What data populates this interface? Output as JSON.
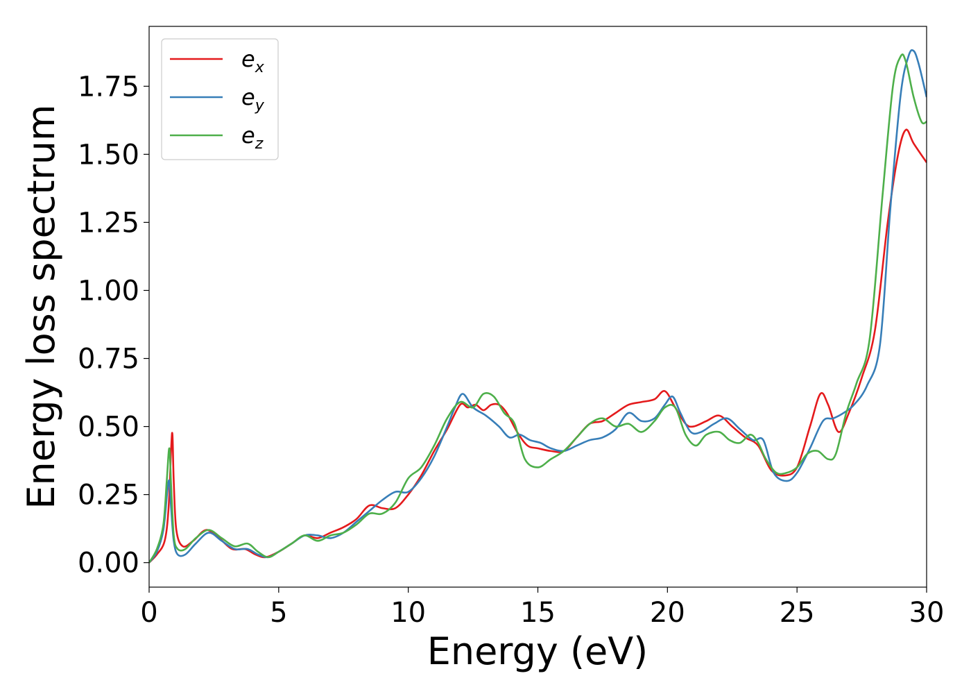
{
  "chart_data": {
    "type": "line",
    "title": "",
    "xlabel": "Energy (eV)",
    "ylabel": "Energy loss spectrum",
    "xlim": [
      0,
      30
    ],
    "ylim": [
      -0.09,
      1.97
    ],
    "xticks": [
      0,
      5,
      10,
      15,
      20,
      25,
      30
    ],
    "xtick_labels": [
      "0",
      "5",
      "10",
      "15",
      "20",
      "25",
      "30"
    ],
    "yticks": [
      0.0,
      0.25,
      0.5,
      0.75,
      1.0,
      1.25,
      1.5,
      1.75
    ],
    "ytick_labels": [
      "0.00",
      "0.25",
      "0.50",
      "0.75",
      "1.00",
      "1.25",
      "1.50",
      "1.75"
    ],
    "grid": false,
    "legend_position": "top-left",
    "series": [
      {
        "name": "e",
        "subscript": "x",
        "color": "#e41a1c",
        "x": [
          0,
          0.3,
          0.6,
          0.75,
          0.85,
          0.9,
          0.95,
          1.05,
          1.3,
          1.7,
          2.2,
          2.7,
          3.2,
          3.7,
          4.1,
          4.5,
          5.0,
          5.5,
          6.0,
          6.5,
          7.0,
          7.5,
          8.0,
          8.5,
          9.0,
          9.5,
          10.0,
          10.5,
          11.0,
          11.5,
          12.0,
          12.3,
          12.6,
          12.9,
          13.2,
          13.5,
          13.8,
          14.2,
          14.6,
          15.0,
          15.5,
          16.0,
          16.5,
          17.0,
          17.5,
          18.0,
          18.5,
          19.0,
          19.5,
          19.9,
          20.3,
          20.7,
          21.0,
          21.5,
          22.0,
          22.5,
          23.0,
          23.5,
          24.0,
          24.5,
          25.0,
          25.5,
          25.9,
          26.2,
          26.6,
          27.0,
          27.5,
          28.0,
          28.5,
          28.9,
          29.2,
          29.5,
          30.0
        ],
        "values": [
          0.0,
          0.03,
          0.08,
          0.2,
          0.42,
          0.47,
          0.3,
          0.12,
          0.06,
          0.08,
          0.12,
          0.09,
          0.05,
          0.05,
          0.03,
          0.02,
          0.04,
          0.07,
          0.1,
          0.09,
          0.11,
          0.13,
          0.16,
          0.21,
          0.2,
          0.2,
          0.25,
          0.32,
          0.41,
          0.49,
          0.58,
          0.57,
          0.58,
          0.56,
          0.58,
          0.58,
          0.55,
          0.48,
          0.43,
          0.42,
          0.41,
          0.41,
          0.46,
          0.51,
          0.52,
          0.55,
          0.58,
          0.59,
          0.6,
          0.63,
          0.57,
          0.51,
          0.5,
          0.52,
          0.54,
          0.5,
          0.46,
          0.43,
          0.34,
          0.32,
          0.35,
          0.5,
          0.62,
          0.58,
          0.48,
          0.55,
          0.68,
          0.85,
          1.25,
          1.5,
          1.59,
          1.54,
          1.47
        ]
      },
      {
        "name": "e",
        "subscript": "y",
        "color": "#377eb8",
        "x": [
          0,
          0.3,
          0.55,
          0.7,
          0.78,
          0.85,
          0.95,
          1.1,
          1.4,
          1.8,
          2.3,
          2.8,
          3.3,
          3.8,
          4.2,
          4.6,
          5.0,
          5.5,
          6.0,
          6.5,
          7.0,
          7.5,
          8.0,
          8.5,
          9.0,
          9.5,
          10.0,
          10.5,
          11.0,
          11.5,
          11.8,
          12.1,
          12.5,
          13.0,
          13.5,
          13.9,
          14.3,
          14.7,
          15.1,
          15.5,
          16.0,
          16.5,
          17.0,
          17.5,
          18.0,
          18.5,
          19.0,
          19.5,
          19.9,
          20.2,
          20.5,
          20.9,
          21.3,
          21.8,
          22.3,
          22.8,
          23.3,
          23.7,
          24.1,
          24.6,
          25.0,
          25.5,
          26.0,
          26.4,
          26.8,
          27.2,
          27.7,
          28.2,
          28.6,
          29.0,
          29.3,
          29.5,
          29.7,
          30.0
        ],
        "values": [
          0.0,
          0.04,
          0.12,
          0.26,
          0.3,
          0.2,
          0.08,
          0.03,
          0.03,
          0.07,
          0.11,
          0.08,
          0.05,
          0.05,
          0.03,
          0.02,
          0.04,
          0.07,
          0.1,
          0.1,
          0.09,
          0.11,
          0.15,
          0.19,
          0.23,
          0.26,
          0.26,
          0.31,
          0.39,
          0.5,
          0.57,
          0.62,
          0.57,
          0.54,
          0.5,
          0.46,
          0.47,
          0.45,
          0.44,
          0.42,
          0.41,
          0.43,
          0.45,
          0.46,
          0.49,
          0.55,
          0.52,
          0.53,
          0.58,
          0.61,
          0.55,
          0.48,
          0.48,
          0.51,
          0.53,
          0.49,
          0.45,
          0.45,
          0.33,
          0.3,
          0.33,
          0.42,
          0.52,
          0.53,
          0.55,
          0.58,
          0.65,
          0.8,
          1.3,
          1.72,
          1.86,
          1.88,
          1.83,
          1.71
        ]
      },
      {
        "name": "e",
        "subscript": "z",
        "color": "#4daf4a",
        "x": [
          0,
          0.3,
          0.55,
          0.68,
          0.78,
          0.85,
          0.95,
          1.1,
          1.4,
          1.8,
          2.3,
          2.8,
          3.3,
          3.8,
          4.2,
          4.6,
          5.0,
          5.5,
          6.0,
          6.5,
          7.0,
          7.5,
          8.0,
          8.5,
          9.0,
          9.5,
          10.0,
          10.5,
          11.0,
          11.5,
          12.0,
          12.5,
          12.9,
          13.3,
          13.7,
          14.1,
          14.5,
          15.0,
          15.5,
          16.0,
          16.5,
          17.0,
          17.5,
          18.0,
          18.5,
          19.0,
          19.5,
          19.9,
          20.3,
          20.7,
          21.1,
          21.5,
          22.0,
          22.4,
          22.8,
          23.2,
          23.5,
          23.8,
          24.2,
          24.6,
          25.0,
          25.4,
          25.8,
          26.2,
          26.5,
          26.9,
          27.3,
          27.8,
          28.3,
          28.7,
          29.0,
          29.2,
          29.5,
          29.8,
          30.0
        ],
        "values": [
          0.0,
          0.05,
          0.14,
          0.3,
          0.42,
          0.28,
          0.1,
          0.05,
          0.05,
          0.09,
          0.12,
          0.09,
          0.06,
          0.07,
          0.04,
          0.02,
          0.04,
          0.07,
          0.1,
          0.08,
          0.1,
          0.11,
          0.14,
          0.18,
          0.18,
          0.22,
          0.31,
          0.35,
          0.43,
          0.53,
          0.59,
          0.57,
          0.62,
          0.61,
          0.55,
          0.51,
          0.38,
          0.35,
          0.38,
          0.41,
          0.46,
          0.51,
          0.53,
          0.5,
          0.51,
          0.48,
          0.52,
          0.57,
          0.57,
          0.47,
          0.43,
          0.47,
          0.48,
          0.45,
          0.44,
          0.47,
          0.44,
          0.38,
          0.33,
          0.33,
          0.35,
          0.4,
          0.41,
          0.38,
          0.4,
          0.55,
          0.66,
          0.82,
          1.35,
          1.75,
          1.86,
          1.84,
          1.71,
          1.62,
          1.62
        ]
      }
    ]
  }
}
